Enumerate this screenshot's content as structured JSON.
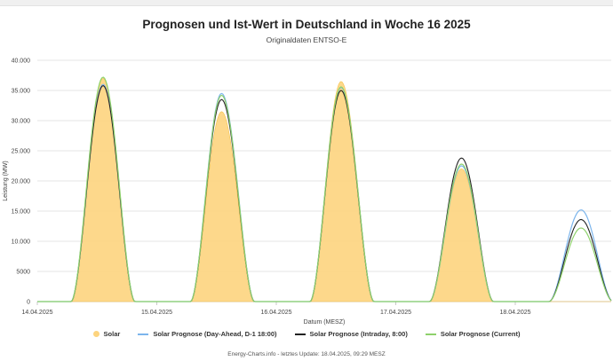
{
  "chart_data": {
    "type": "area",
    "title": "Prognosen und Ist-Wert in Deutschland in Woche 16 2025",
    "subtitle": "Originaldaten ENTSO-E",
    "xlabel": "Datum (MESZ)",
    "ylabel": "Leistung (MW)",
    "ylim": [
      0,
      40000
    ],
    "y_ticks": [
      0,
      5000,
      10000,
      15000,
      20000,
      25000,
      30000,
      35000,
      40000
    ],
    "y_tick_labels": [
      "0",
      "5000",
      "10.000",
      "15.000",
      "20.000",
      "25.000",
      "30.000",
      "35.000",
      "40.000"
    ],
    "x_ticks": [
      "14.04.2025",
      "15.04.2025",
      "16.04.2025",
      "17.04.2025",
      "18.04.2025"
    ],
    "xlim_days": [
      0,
      4.85
    ],
    "grid": true,
    "legend_position": "bottom",
    "series": [
      {
        "name": "Solar",
        "kind": "area",
        "color": "#fdd47e",
        "peaks": [
          {
            "day": 0,
            "center_hour": 13.2,
            "peak": 37000
          },
          {
            "day": 1,
            "center_hour": 13.0,
            "peak": 31500
          },
          {
            "day": 2,
            "center_hour": 13.0,
            "peak": 36500
          },
          {
            "day": 3,
            "center_hour": 13.2,
            "peak": 22000
          }
        ]
      },
      {
        "name": "Solar Prognose (Day-Ahead, D-1 18:00)",
        "kind": "line",
        "color": "#7cb5ec",
        "peaks": [
          {
            "day": 0,
            "center_hour": 13.2,
            "peak": 36000
          },
          {
            "day": 1,
            "center_hour": 13.0,
            "peak": 34500
          },
          {
            "day": 2,
            "center_hour": 13.0,
            "peak": 35500
          },
          {
            "day": 3,
            "center_hour": 13.2,
            "peak": 22500
          },
          {
            "day": 4,
            "center_hour": 13.2,
            "peak": 15200
          }
        ]
      },
      {
        "name": "Solar Prognose (Intraday, 8:00)",
        "kind": "line",
        "color": "#222222",
        "peaks": [
          {
            "day": 0,
            "center_hour": 13.2,
            "peak": 35800
          },
          {
            "day": 1,
            "center_hour": 13.0,
            "peak": 33500
          },
          {
            "day": 2,
            "center_hour": 13.0,
            "peak": 35000
          },
          {
            "day": 3,
            "center_hour": 13.2,
            "peak": 23800
          },
          {
            "day": 4,
            "center_hour": 13.2,
            "peak": 13600
          }
        ]
      },
      {
        "name": "Solar Prognose (Current)",
        "kind": "line",
        "color": "#8ed16b",
        "peaks": [
          {
            "day": 0,
            "center_hour": 13.2,
            "peak": 37200
          },
          {
            "day": 1,
            "center_hour": 13.0,
            "peak": 34200
          },
          {
            "day": 2,
            "center_hour": 13.0,
            "peak": 35600
          },
          {
            "day": 3,
            "center_hour": 13.2,
            "peak": 22800
          },
          {
            "day": 4,
            "center_hour": 13.2,
            "peak": 12200
          }
        ]
      }
    ]
  },
  "credits": "Energy-Charts.info - letztes Update: 18.04.2025, 09:29 MESZ"
}
